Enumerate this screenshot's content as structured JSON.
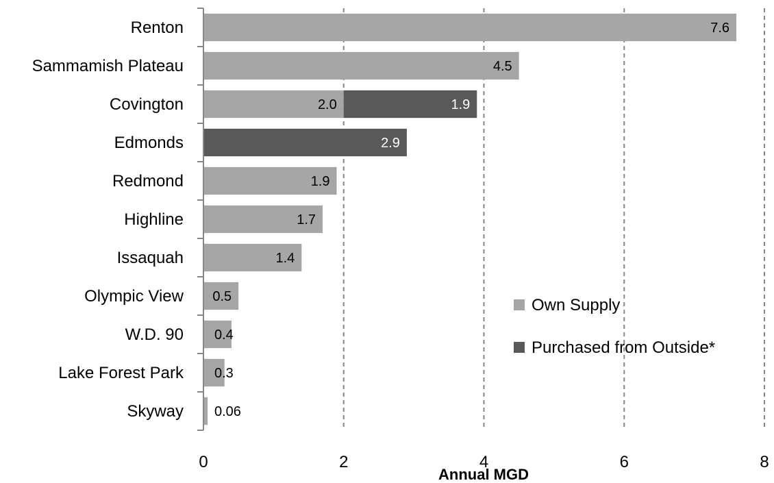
{
  "chart_data": {
    "type": "bar",
    "orientation": "horizontal",
    "stacked": true,
    "categories": [
      "Renton",
      "Sammamish Plateau",
      "Covington",
      "Edmonds",
      "Redmond",
      "Highline",
      "Issaquah",
      "Olympic View",
      "W.D. 90",
      "Lake Forest Park",
      "Skyway"
    ],
    "series": [
      {
        "name": "Own Supply",
        "color": "#a6a6a6",
        "values": [
          7.6,
          4.5,
          2.0,
          0,
          1.9,
          1.7,
          1.4,
          0.5,
          0.4,
          0.3,
          0.06
        ],
        "labels": [
          "7.6",
          "4.5",
          "2.0",
          "",
          "1.9",
          "1.7",
          "1.4",
          "0.5",
          "0.4",
          "0.3",
          "0.06"
        ]
      },
      {
        "name": "Purchased from Outside*",
        "color": "#595959",
        "values": [
          0,
          0,
          1.9,
          2.9,
          0,
          0,
          0,
          0,
          0,
          0,
          0
        ],
        "labels": [
          "",
          "",
          "1.9",
          "2.9",
          "",
          "",
          "",
          "",
          "",
          "",
          ""
        ]
      }
    ],
    "xlabel": "Annual MGD",
    "ylabel": "",
    "xlim": [
      0,
      8
    ],
    "xticks": [
      "0",
      "2",
      "4",
      "6",
      "8"
    ],
    "grid": "vertical dashed",
    "legend_position": "lower-right"
  }
}
